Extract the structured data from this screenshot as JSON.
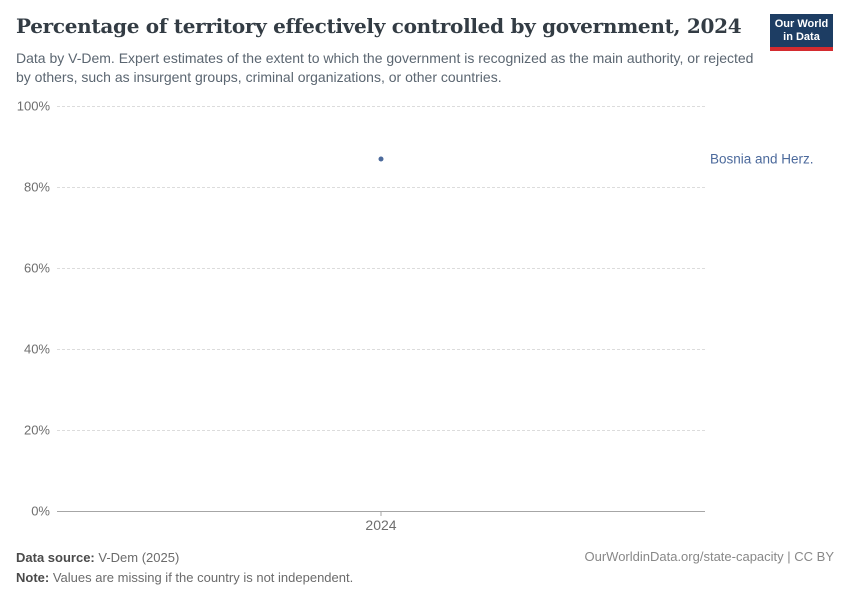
{
  "header": {
    "title": "Percentage of territory effectively controlled by government, 2024",
    "subtitle": "Data by V-Dem. Expert estimates of the extent to which the government is recognized as the main authority, or rejected by others, such as insurgent groups, criminal organizations, or other countries.",
    "logo": {
      "line1": "Our World",
      "line2": "in Data"
    }
  },
  "chart_data": {
    "type": "scatter",
    "title": "Percentage of territory effectively controlled by government, 2024",
    "x": [
      2024
    ],
    "series": [
      {
        "name": "Bosnia and Herz.",
        "values": [
          87
        ]
      }
    ],
    "ylim": [
      0,
      100
    ],
    "yticks": [
      "0%",
      "20%",
      "40%",
      "60%",
      "80%",
      "100%"
    ],
    "xticks": [
      "2024"
    ],
    "grid": "horizontal dashed, solid baseline at 0%",
    "legend_position": "entity label right of plot",
    "point_color": "#4C6A9C"
  },
  "footer": {
    "data_source_label": "Data source:",
    "data_source_value": " V-Dem (2025)",
    "note_label": "Note:",
    "note_value": " Values are missing if the country is not independent.",
    "attribution": "OurWorldinData.org/state-capacity | CC BY"
  },
  "colors": {
    "accent_blue": "#4C6A9C",
    "logo_background": "#1d3d63",
    "logo_red_bar": "#d42b2f",
    "title_text": "#333c44",
    "subtitle_text": "#5b6671",
    "gridline": "#dcdcdc",
    "axis_line": "#a6a6a6",
    "tick_text": "#6e6e6e"
  }
}
